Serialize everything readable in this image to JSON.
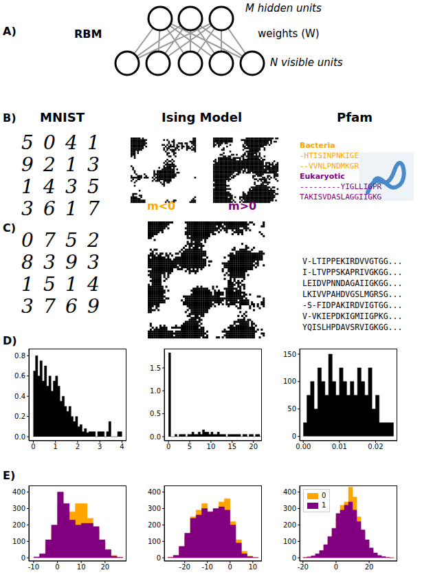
{
  "panel_labels": [
    "A)",
    "B)",
    "C)",
    "D)",
    "E)"
  ],
  "rbm": {
    "title": "RBM",
    "hidden": "M hidden units",
    "weights": "weights (W)",
    "visible": "N visible units"
  },
  "columns": [
    "MNIST",
    "Ising Model",
    "Pfam"
  ],
  "mnist_samples": [
    "5041",
    "9213",
    "1435",
    "3617"
  ],
  "mnist_generated": [
    "0752",
    "8393",
    "1514",
    "3769"
  ],
  "ising_labels": [
    {
      "text": "m<0",
      "color": "#ffa500"
    },
    {
      "text": "m>0",
      "color": "#800080"
    }
  ],
  "pfam": [
    {
      "name": "Bacteria",
      "color": "#ffa500",
      "sequences": [
        "-HTISINPNKIGE",
        "--VVNLPNDMKGR"
      ]
    },
    {
      "name": "Eukaryotic",
      "color": "#800080",
      "sequences": [
        "---------YIGLLIGPR",
        "TAKISVDASLAGGIIGKG"
      ]
    }
  ],
  "pfam_generated": [
    "V-LTIPPEKIRDVVGTGG...",
    "I-LTVPPSKAPRIVGKGG...",
    "LEIDVPNNDAGAIIGKGG...",
    "LKIVVPAHDVGSLMGRSG...",
    "-S-FIDPAKIRDVIGTGG...",
    "V-VKIEPDKIGMIIGPKG...",
    "YQISLHPDAVSRVIGKGG..."
  ],
  "chart_data": [
    {
      "type": "histogram",
      "color": "#000000",
      "bins": [
        0,
        0.1,
        0.2,
        0.3,
        0.4,
        0.5,
        0.6,
        0.7,
        0.8,
        0.9,
        1.0,
        1.1,
        1.2,
        1.3,
        1.4,
        1.5,
        1.6,
        1.7,
        1.8,
        1.9,
        2.0,
        2.1,
        2.2,
        2.3,
        2.4,
        2.5,
        2.6,
        2.7,
        2.8,
        2.9,
        3.0,
        3.1,
        3.2,
        3.3,
        3.4,
        3.5,
        3.6,
        3.7,
        3.8,
        3.9,
        4.0
      ],
      "values": [
        0.65,
        0.8,
        0.6,
        0.75,
        0.55,
        0.7,
        0.5,
        0.6,
        0.45,
        0.55,
        0.6,
        0.5,
        0.35,
        0.4,
        0.3,
        0.25,
        0.3,
        0.2,
        0.15,
        0.2,
        0.1,
        0.12,
        0.05,
        0.08,
        0.04,
        0.05,
        0.05,
        0.05,
        0,
        0.05,
        0.05,
        0.05,
        0,
        0.05,
        0.15,
        0,
        0,
        0,
        0.05,
        0.05
      ],
      "xlim": [
        -0.2,
        4.2
      ],
      "xticks": [
        0,
        1,
        2,
        3,
        4
      ],
      "ylim": [
        -0.04,
        0.87
      ],
      "yticks": [
        {
          "value": 0,
          "label": "0.0"
        },
        {
          "value": 0.2,
          "label": "0.2"
        },
        {
          "value": 0.4,
          "label": "0.4"
        },
        {
          "value": 0.6,
          "label": "0.6"
        },
        {
          "value": 0.8,
          "label": "0.8"
        }
      ]
    },
    {
      "type": "histogram",
      "color": "#000000",
      "bins": [
        0,
        0.5,
        1,
        1.5,
        2,
        2.5,
        3,
        3.5,
        4,
        4.5,
        5,
        5.5,
        6,
        6.5,
        7,
        7.5,
        8,
        8.5,
        9,
        9.5,
        10,
        10.5,
        11,
        11.5,
        12,
        12.5,
        13,
        13.5,
        14,
        14.5,
        15,
        15.5,
        16,
        16.5,
        17,
        17.5,
        18,
        18.5,
        19,
        19.5,
        20,
        20.5,
        21,
        21.5,
        22
      ],
      "values": [
        1.83,
        0,
        0,
        0.05,
        0,
        0.05,
        0.05,
        0.05,
        0,
        0.05,
        0.05,
        0.1,
        0.05,
        0.05,
        0.1,
        0.05,
        0.15,
        0.1,
        0.1,
        0.05,
        0.1,
        0.05,
        0.05,
        0.1,
        0.05,
        0.05,
        0.05,
        0,
        0.05,
        0.05,
        0.05,
        0.05,
        0.05,
        0.05,
        0,
        0.05,
        0.05,
        0,
        0.05,
        0.05,
        0,
        0.05,
        0.05,
        0
      ],
      "xlim": [
        -1,
        22
      ],
      "xticks": [
        0,
        5,
        10,
        15,
        20
      ],
      "ylim": [
        -0.09,
        1.92
      ],
      "yticks": [
        {
          "value": 0,
          "label": "0.0"
        },
        {
          "value": 0.5,
          "label": "0.5"
        },
        {
          "value": 1,
          "label": "1.0"
        },
        {
          "value": 1.5,
          "label": "1.5"
        }
      ]
    },
    {
      "type": "histogram",
      "color": "#000000",
      "bins": [
        0,
        0.001,
        0.002,
        0.003,
        0.004,
        0.005,
        0.006,
        0.007,
        0.008,
        0.009,
        0.01,
        0.011,
        0.012,
        0.013,
        0.014,
        0.015,
        0.016,
        0.017,
        0.018,
        0.019,
        0.02,
        0.021,
        0.022,
        0.023,
        0.024,
        0.025
      ],
      "values": [
        25,
        75,
        100,
        50,
        125,
        100,
        75,
        150,
        100,
        75,
        125,
        100,
        75,
        100,
        75,
        125,
        100,
        75,
        125,
        50,
        75,
        25,
        25,
        25,
        25
      ],
      "xlim": [
        -0.001,
        0.026
      ],
      "xticks": [
        {
          "value": 0,
          "label": "0.00"
        },
        {
          "value": 0.01,
          "label": "0.01"
        },
        {
          "value": 0.02,
          "label": "0.02"
        }
      ],
      "ylim": [
        -8,
        160
      ],
      "yticks": [
        0,
        50,
        100,
        150
      ]
    },
    {
      "type": "histogram",
      "bins": [
        -10,
        -7.5,
        -5,
        -2.5,
        0,
        2.5,
        5,
        7.5,
        10,
        12.5,
        15,
        17.5,
        20,
        22.5,
        25,
        27.5
      ],
      "series": [
        {
          "color": "#ffa500",
          "values": [
            5,
            20,
            80,
            170,
            320,
            300,
            280,
            330,
            330,
            240,
            170,
            100,
            50,
            15,
            5
          ]
        },
        {
          "color": "#800080",
          "values": [
            5,
            25,
            110,
            200,
            400,
            330,
            230,
            200,
            210,
            210,
            190,
            110,
            50,
            10,
            3
          ]
        }
      ],
      "xlim": [
        -12,
        29
      ],
      "xticks": [
        -10,
        0,
        10,
        20
      ],
      "ylim": [
        -20,
        440
      ],
      "yticks": [
        0,
        100,
        200,
        300,
        400
      ]
    },
    {
      "type": "histogram",
      "bins": [
        -27.5,
        -25,
        -22.5,
        -20,
        -17.5,
        -15,
        -12.5,
        -10,
        -7.5,
        -5,
        -2.5,
        0,
        2.5,
        5,
        7.5,
        10,
        12.5
      ],
      "series": [
        {
          "color": "#ffa500",
          "values": [
            5,
            15,
            60,
            130,
            250,
            290,
            330,
            280,
            270,
            340,
            360,
            220,
            110,
            40,
            10,
            3
          ]
        },
        {
          "color": "#800080",
          "values": [
            3,
            15,
            70,
            150,
            240,
            260,
            300,
            280,
            300,
            310,
            290,
            200,
            90,
            25,
            8,
            2
          ]
        }
      ],
      "xlim": [
        -29,
        14
      ],
      "xticks": [
        -20,
        -10,
        0,
        10
      ],
      "ylim": [
        -20,
        440
      ],
      "yticks": [
        0,
        100,
        200,
        300,
        400
      ]
    },
    {
      "type": "histogram",
      "legend": "upper left",
      "bins": [
        -20,
        -17.5,
        -15,
        -12.5,
        -10,
        -7.5,
        -5,
        -2.5,
        0,
        2.5,
        5,
        7.5,
        10,
        12.5,
        15,
        17.5,
        20,
        22.5,
        25,
        27.5,
        30,
        32.5,
        35
      ],
      "series": [
        {
          "name": "0",
          "color": "#ffa500",
          "values": [
            3,
            8,
            10,
            20,
            40,
            70,
            110,
            160,
            240,
            320,
            340,
            430,
            370,
            250,
            160,
            90,
            50,
            25,
            10,
            5,
            3,
            1
          ]
        },
        {
          "name": "1",
          "color": "#800080",
          "values": [
            2,
            5,
            12,
            25,
            45,
            80,
            130,
            180,
            270,
            290,
            320,
            340,
            290,
            220,
            170,
            110,
            60,
            30,
            15,
            8,
            3,
            1
          ]
        }
      ],
      "xlim": [
        -22,
        37
      ],
      "xticks": [
        -20,
        0,
        20
      ],
      "ylim": [
        -20,
        440
      ],
      "yticks": [
        0,
        100,
        200,
        300,
        400
      ]
    }
  ]
}
